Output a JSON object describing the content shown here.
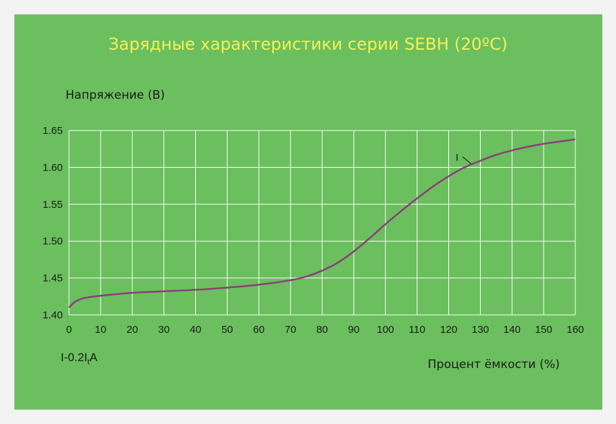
{
  "title": "Зарядные характеристики серии SEBH (20ºC)",
  "colors": {
    "background": "#6bbf5e",
    "title": "#f5ef5a",
    "grid": "#ffffff",
    "line": "#8b3d7a"
  },
  "chart_data": {
    "type": "line",
    "title": "Зарядные характеристики серии SEBH (20ºC)",
    "xlabel": "Процент ёмкости (%)",
    "ylabel": "Напряжение (В)",
    "xlim": [
      0,
      160
    ],
    "ylim": [
      1.4,
      1.65
    ],
    "grid": true,
    "x_ticks": [
      "0",
      "10",
      "20",
      "30",
      "40",
      "50",
      "60",
      "70",
      "80",
      "90",
      "100",
      "110",
      "120",
      "130",
      "140",
      "150",
      "160"
    ],
    "y_ticks": [
      "1.40",
      "1.45",
      "1.50",
      "1.55",
      "1.60",
      "1.65"
    ],
    "note": {
      "main": "I-0.2I",
      "sub": "t",
      "tail": "A"
    },
    "series": [
      {
        "name": "I",
        "x": [
          0,
          2,
          5,
          10,
          20,
          30,
          40,
          50,
          60,
          70,
          75,
          80,
          85,
          90,
          95,
          100,
          105,
          110,
          115,
          120,
          125,
          130,
          135,
          140,
          145,
          150,
          155,
          160
        ],
        "y": [
          1.41,
          1.418,
          1.423,
          1.426,
          1.43,
          1.432,
          1.434,
          1.437,
          1.441,
          1.447,
          1.452,
          1.46,
          1.471,
          1.486,
          1.504,
          1.523,
          1.541,
          1.558,
          1.574,
          1.588,
          1.6,
          1.609,
          1.617,
          1.623,
          1.628,
          1.632,
          1.635,
          1.638
        ]
      }
    ]
  }
}
